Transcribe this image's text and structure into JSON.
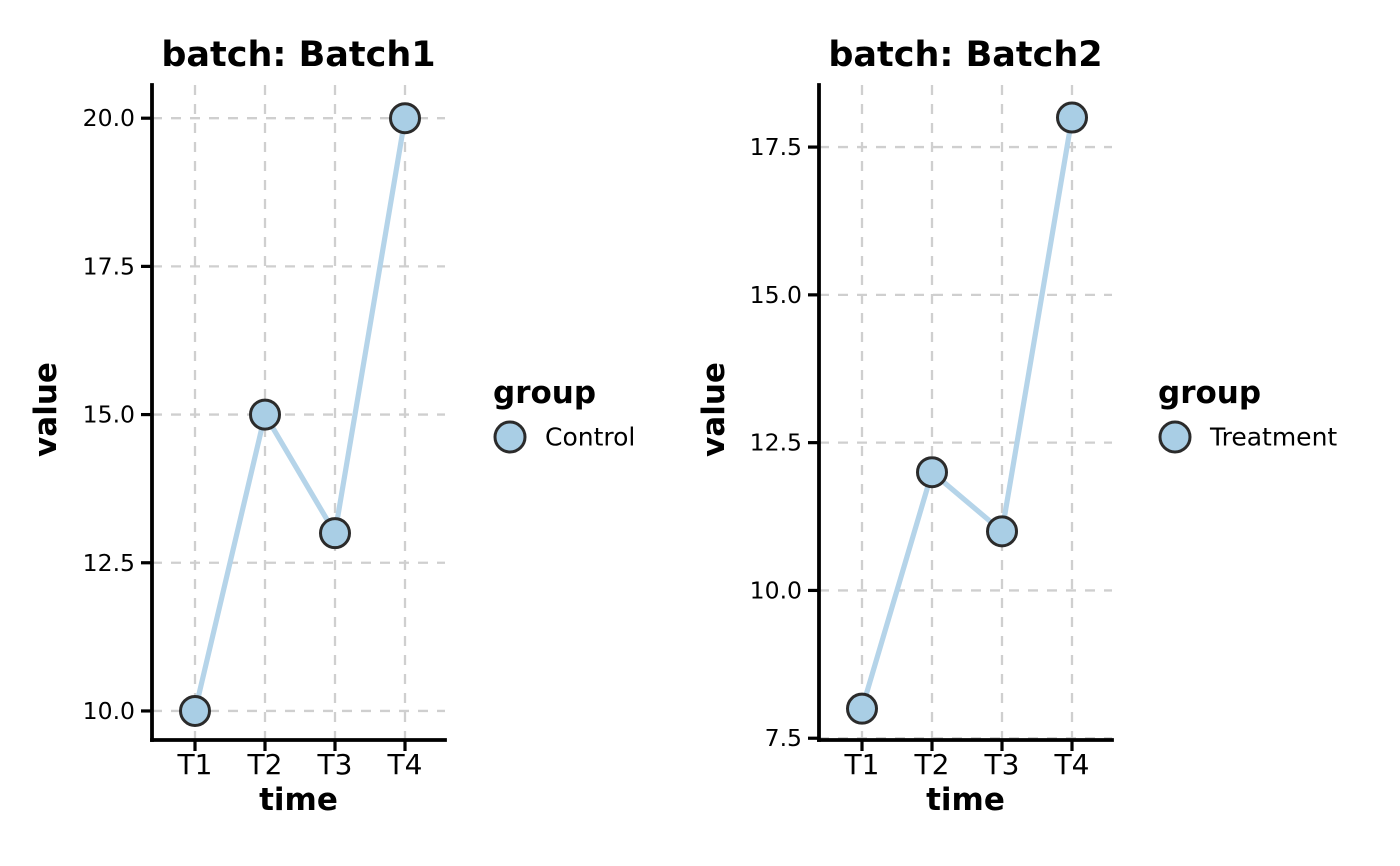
{
  "figure": {
    "kind": "faceted line chart",
    "background": "#ffffff",
    "colors": {
      "marker_fill": "#a9cee5",
      "marker_edge": "#2b2b2b",
      "line": "#b5d4e9",
      "grid": "#cfcfcf",
      "axis": "#000000",
      "text": "#000000"
    }
  },
  "chart_data": [
    {
      "type": "line",
      "title": "batch: Batch1",
      "xlabel": "time",
      "ylabel": "value",
      "categories": [
        "T1",
        "T2",
        "T3",
        "T4"
      ],
      "series": [
        {
          "name": "Control",
          "values": [
            10,
            15,
            13,
            20
          ]
        }
      ],
      "ytick_labels": [
        "10.0",
        "12.5",
        "15.0",
        "17.5",
        "20.0"
      ],
      "ytick_values": [
        10.0,
        12.5,
        15.0,
        17.5,
        20.0
      ],
      "ylim": [
        9.51,
        20.56
      ],
      "grid": true,
      "legend": {
        "title": "group",
        "position": "right",
        "entries": [
          "Control"
        ]
      }
    },
    {
      "type": "line",
      "title": "batch: Batch2",
      "xlabel": "time",
      "ylabel": "value",
      "categories": [
        "T1",
        "T2",
        "T3",
        "T4"
      ],
      "series": [
        {
          "name": "Treatment",
          "values": [
            8,
            12,
            11,
            18
          ]
        }
      ],
      "ytick_labels": [
        "7.5",
        "10.0",
        "12.5",
        "15.0",
        "17.5"
      ],
      "ytick_values": [
        7.5,
        10.0,
        12.5,
        15.0,
        17.5
      ],
      "ylim": [
        7.47,
        18.55
      ],
      "grid": true,
      "legend": {
        "title": "group",
        "position": "right",
        "entries": [
          "Treatment"
        ]
      }
    }
  ]
}
